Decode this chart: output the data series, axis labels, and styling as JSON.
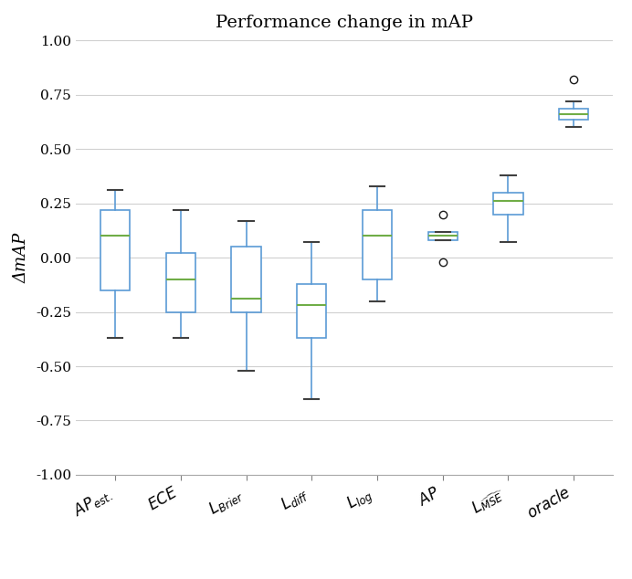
{
  "title": "Performance change in mAP",
  "ylabel": "ΔmAP",
  "ylim": [
    -1.0,
    1.0
  ],
  "yticks": [
    -1.0,
    -0.75,
    -0.5,
    -0.25,
    0.0,
    0.25,
    0.5,
    0.75,
    1.0
  ],
  "ytick_labels": [
    "-1.00",
    "-0.75",
    "-0.50",
    "-0.25",
    "0.00",
    "0.25",
    "0.50",
    "0.75",
    "1.00"
  ],
  "box_data": [
    {
      "label": "AP_est",
      "q1": -0.15,
      "median": 0.1,
      "q3": 0.22,
      "whislo": -0.37,
      "whishi": 0.31,
      "fliers": []
    },
    {
      "label": "ECE",
      "q1": -0.25,
      "median": -0.1,
      "q3": 0.02,
      "whislo": -0.37,
      "whishi": 0.22,
      "fliers": []
    },
    {
      "label": "L_Brier",
      "q1": -0.25,
      "median": -0.19,
      "q3": 0.05,
      "whislo": -0.52,
      "whishi": 0.17,
      "fliers": []
    },
    {
      "label": "L_diff",
      "q1": -0.37,
      "median": -0.22,
      "q3": -0.12,
      "whislo": -0.65,
      "whishi": 0.07,
      "fliers": []
    },
    {
      "label": "L_log",
      "q1": -0.1,
      "median": 0.1,
      "q3": 0.22,
      "whislo": -0.2,
      "whishi": 0.33,
      "fliers": []
    },
    {
      "label": "AP",
      "q1": 0.08,
      "median": 0.1,
      "q3": 0.12,
      "whislo": 0.08,
      "whishi": 0.12,
      "fliers": [
        0.2,
        -0.02
      ]
    },
    {
      "label": "L_MSE",
      "q1": 0.2,
      "median": 0.26,
      "q3": 0.3,
      "whislo": 0.07,
      "whishi": 0.38,
      "fliers": []
    },
    {
      "label": "oracle",
      "q1": 0.635,
      "median": 0.66,
      "q3": 0.685,
      "whislo": 0.6,
      "whishi": 0.72,
      "fliers": [
        0.82
      ]
    }
  ],
  "box_color": "#5B9BD5",
  "median_color": "#70AD47",
  "cap_color": "#404040",
  "flier_color": "#1a1a1a",
  "grid_color": "#d0d0d0",
  "background_color": "#ffffff",
  "figsize": [
    6.92,
    6.34
  ],
  "dpi": 100
}
